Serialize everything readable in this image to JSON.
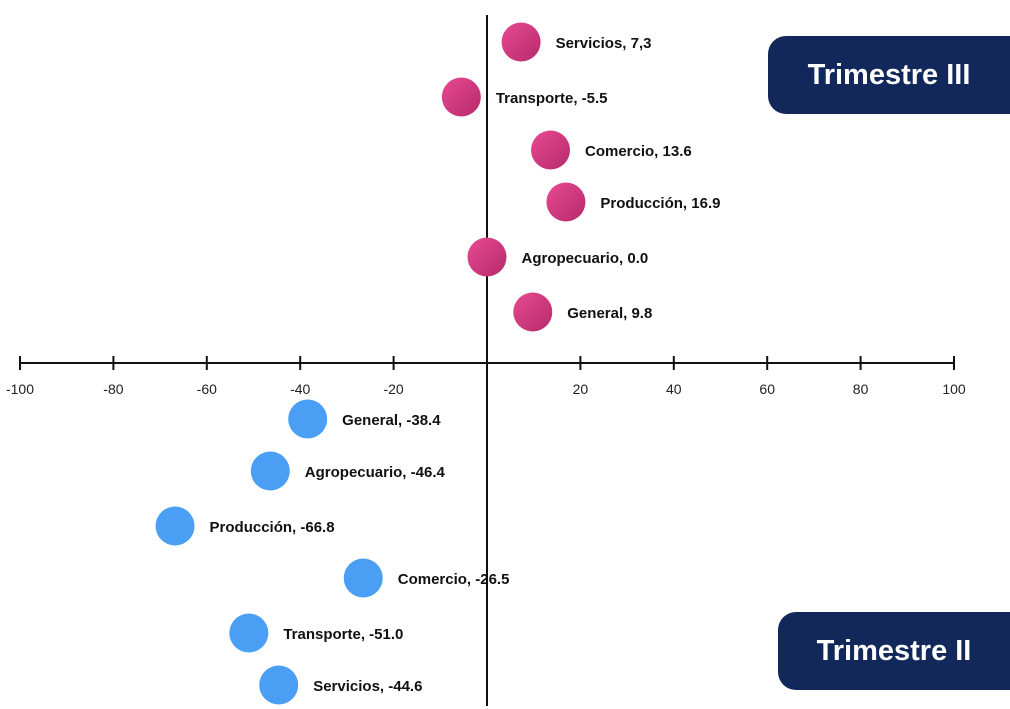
{
  "badges": {
    "q3": "Trimestre III",
    "q2": "Trimestre II"
  },
  "colors": {
    "q3_point": "#dc3f86",
    "q3_point_dark": "#b52a6a",
    "q2_point": "#4a9ff5",
    "axis": "#111111",
    "badge": "#12275a"
  },
  "chart_data": {
    "type": "scatter",
    "xlim": [
      -100,
      100
    ],
    "x_ticks": [
      "-100",
      "-80",
      "-60",
      "-40",
      "-20",
      "0",
      "20",
      "40",
      "60",
      "80",
      "100"
    ],
    "tick_values": [
      -100,
      -80,
      -60,
      -40,
      -20,
      0,
      20,
      40,
      60,
      80,
      100
    ],
    "grid": false,
    "series": [
      {
        "name": "Trimestre III",
        "points": [
          {
            "label": "Servicios, 7,3",
            "category": "Servicios",
            "value": 7.3
          },
          {
            "label": "Transporte, -5.5",
            "category": "Transporte",
            "value": -5.5
          },
          {
            "label": "Comercio, 13.6",
            "category": "Comercio",
            "value": 13.6
          },
          {
            "label": "Producción, 16.9",
            "category": "Producción",
            "value": 16.9
          },
          {
            "label": "Agropecuario, 0.0",
            "category": "Agropecuario",
            "value": 0.0
          },
          {
            "label": "General, 9.8",
            "category": "General",
            "value": 9.8
          }
        ]
      },
      {
        "name": "Trimestre II",
        "points": [
          {
            "label": "General, -38.4",
            "category": "General",
            "value": -38.4
          },
          {
            "label": "Agropecuario, -46.4",
            "category": "Agropecuario",
            "value": -46.4
          },
          {
            "label": "Producción, -66.8",
            "category": "Producción",
            "value": -66.8
          },
          {
            "label": "Comercio, -26.5",
            "category": "Comercio",
            "value": -26.5
          },
          {
            "label": "Transporte, -51.0",
            "category": "Transporte",
            "value": -51.0
          },
          {
            "label": "Servicios, -44.6",
            "category": "Servicios",
            "value": -44.6
          }
        ]
      }
    ]
  }
}
